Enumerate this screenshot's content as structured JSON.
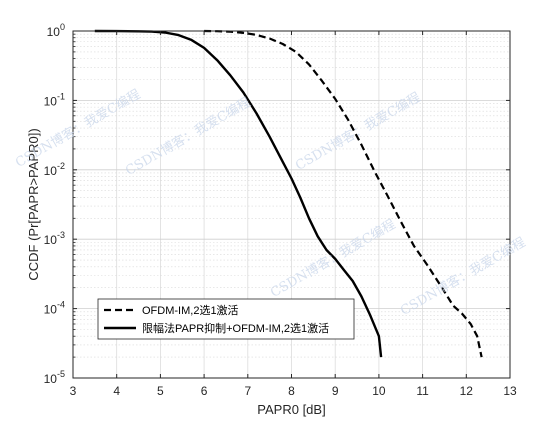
{
  "chart_data": {
    "type": "line",
    "xlabel": "PAPR0 [dB]",
    "ylabel": "CCDF (Pr[PAPR>PAPR0])",
    "xlim": [
      3,
      13
    ],
    "ylim": [
      1e-05,
      1
    ],
    "y_scale": "log",
    "x_ticks": [
      "3",
      "4",
      "5",
      "6",
      "7",
      "8",
      "9",
      "10",
      "11",
      "12",
      "13"
    ],
    "y_ticks": [
      {
        "base": "10",
        "exp": "0"
      },
      {
        "base": "10",
        "exp": "-1"
      },
      {
        "base": "10",
        "exp": "-2"
      },
      {
        "base": "10",
        "exp": "-3"
      },
      {
        "base": "10",
        "exp": "-4"
      },
      {
        "base": "10",
        "exp": "-5"
      }
    ],
    "grid": true,
    "minor_grid": true,
    "legend_position": "bottom-left",
    "series": [
      {
        "name": "OFDM-IM,2选1激活",
        "color": "#000000",
        "style": "dashed",
        "x": [
          6.0,
          6.3,
          6.6,
          6.9,
          7.2,
          7.5,
          7.8,
          8.1,
          8.4,
          8.7,
          9.0,
          9.3,
          9.6,
          9.9,
          10.2,
          10.5,
          10.8,
          11.1,
          11.4,
          11.7,
          11.9,
          12.1,
          12.25,
          12.35
        ],
        "y": [
          1.0,
          0.995,
          0.98,
          0.94,
          0.88,
          0.78,
          0.65,
          0.5,
          0.33,
          0.19,
          0.105,
          0.052,
          0.023,
          0.0095,
          0.0042,
          0.0018,
          0.0008,
          0.00043,
          0.00022,
          0.00011,
          8.5e-05,
          6e-05,
          4e-05,
          2e-05
        ]
      },
      {
        "name": "限幅法PAPR抑制+OFDM-IM,2选1激活",
        "color": "#000000",
        "style": "solid",
        "x": [
          3.5,
          4.0,
          4.5,
          4.8,
          5.1,
          5.4,
          5.7,
          6.0,
          6.3,
          6.6,
          6.9,
          7.2,
          7.5,
          7.8,
          8.0,
          8.2,
          8.4,
          8.6,
          8.8,
          9.0,
          9.2,
          9.4,
          9.6,
          9.8,
          10.0,
          10.05
        ],
        "y": [
          1.0,
          0.997,
          0.99,
          0.98,
          0.95,
          0.88,
          0.75,
          0.57,
          0.38,
          0.23,
          0.13,
          0.065,
          0.03,
          0.013,
          0.0075,
          0.004,
          0.002,
          0.0011,
          0.0007,
          0.00052,
          0.00036,
          0.00025,
          0.00015,
          8e-05,
          4e-05,
          2e-05
        ]
      }
    ]
  },
  "watermarks": [
    "CSDN博客：我爱C编程",
    "CSDN博客：我爱C编程",
    "CSDN博客：我爱C编程",
    "CSDN博客：我爱C编程",
    "CSDN博客：我爱C编程"
  ]
}
